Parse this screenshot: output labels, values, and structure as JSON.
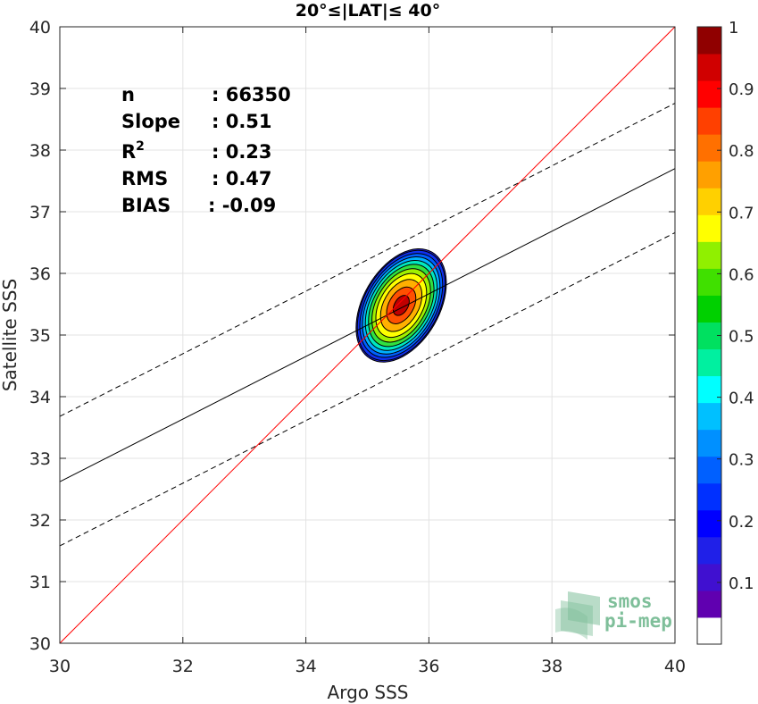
{
  "chart_data": {
    "type": "scatter",
    "title": "20°≤|LAT|≤ 40°",
    "xlabel": "Argo SSS",
    "ylabel": "Satellite SSS",
    "xlim": [
      30,
      40
    ],
    "ylim": [
      30,
      40
    ],
    "x_ticks": [
      "30",
      "32",
      "34",
      "36",
      "38",
      "40"
    ],
    "y_ticks": [
      "30",
      "31",
      "32",
      "33",
      "34",
      "35",
      "36",
      "37",
      "38",
      "39",
      "40"
    ],
    "grid": true,
    "stats": [
      {
        "label": "n",
        "sep": ":",
        "value": "66350"
      },
      {
        "label": "Slope",
        "sep": ":",
        "value": "0.51"
      },
      {
        "label": "R",
        "sup": "2",
        "sep": ":",
        "value": "0.23"
      },
      {
        "label": "RMS",
        "sep": ":",
        "value": "0.47"
      },
      {
        "label": "BIAS",
        "sep": ":",
        "value": "-0.09"
      }
    ],
    "lines": {
      "identity": {
        "x": [
          30,
          40
        ],
        "y": [
          30,
          40
        ],
        "color": "#ff0000"
      },
      "regression": {
        "x": [
          30,
          40
        ],
        "y": [
          32.62,
          37.7
        ],
        "color": "#000000"
      },
      "upper_bound": {
        "x": [
          30,
          40
        ],
        "y": [
          33.68,
          38.76
        ],
        "color": "#000000",
        "style": "dashed"
      },
      "lower_bound": {
        "x": [
          30,
          40
        ],
        "y": [
          31.58,
          36.66
        ],
        "color": "#000000",
        "style": "dashed"
      }
    },
    "density_contours": {
      "center": [
        35.55,
        35.48
      ],
      "outer_semi_axes": [
        0.62,
        1.0
      ],
      "angle_deg": 30,
      "levels": [
        {
          "level": 0.05,
          "color": "#2020d0"
        },
        {
          "level": 0.1,
          "color": "#1030f0"
        },
        {
          "level": 0.2,
          "color": "#0060ff"
        },
        {
          "level": 0.3,
          "color": "#00b0ff"
        },
        {
          "level": 0.4,
          "color": "#00e8c0"
        },
        {
          "level": 0.5,
          "color": "#30e040"
        },
        {
          "level": 0.6,
          "color": "#a0f000"
        },
        {
          "level": 0.7,
          "color": "#ffff00"
        },
        {
          "level": 0.8,
          "color": "#ffb000"
        },
        {
          "level": 0.9,
          "color": "#ff5000"
        },
        {
          "level": 0.97,
          "color": "#c00000"
        }
      ]
    },
    "colorbar": {
      "min": 0,
      "max": 1,
      "tick_labels": [
        "0.1",
        "0.2",
        "0.3",
        "0.4",
        "0.5",
        "0.6",
        "0.7",
        "0.8",
        "0.9",
        "1"
      ],
      "tick_values": [
        0.1,
        0.2,
        0.3,
        0.4,
        0.5,
        0.6,
        0.7,
        0.8,
        0.9,
        1.0
      ],
      "colors": [
        "#ffffff",
        "#6000b0",
        "#4010d0",
        "#2020e8",
        "#0000ff",
        "#0030ff",
        "#0060ff",
        "#0090ff",
        "#00c0ff",
        "#00ffff",
        "#00f0a0",
        "#00e060",
        "#00d000",
        "#40e000",
        "#90f000",
        "#ffff00",
        "#ffd000",
        "#ffa000",
        "#ff7000",
        "#ff4000",
        "#ff0000",
        "#d00000",
        "#900000"
      ]
    }
  },
  "logo": {
    "line1": "smos",
    "line2": "pi-mep",
    "color": "#7fbf9a"
  }
}
